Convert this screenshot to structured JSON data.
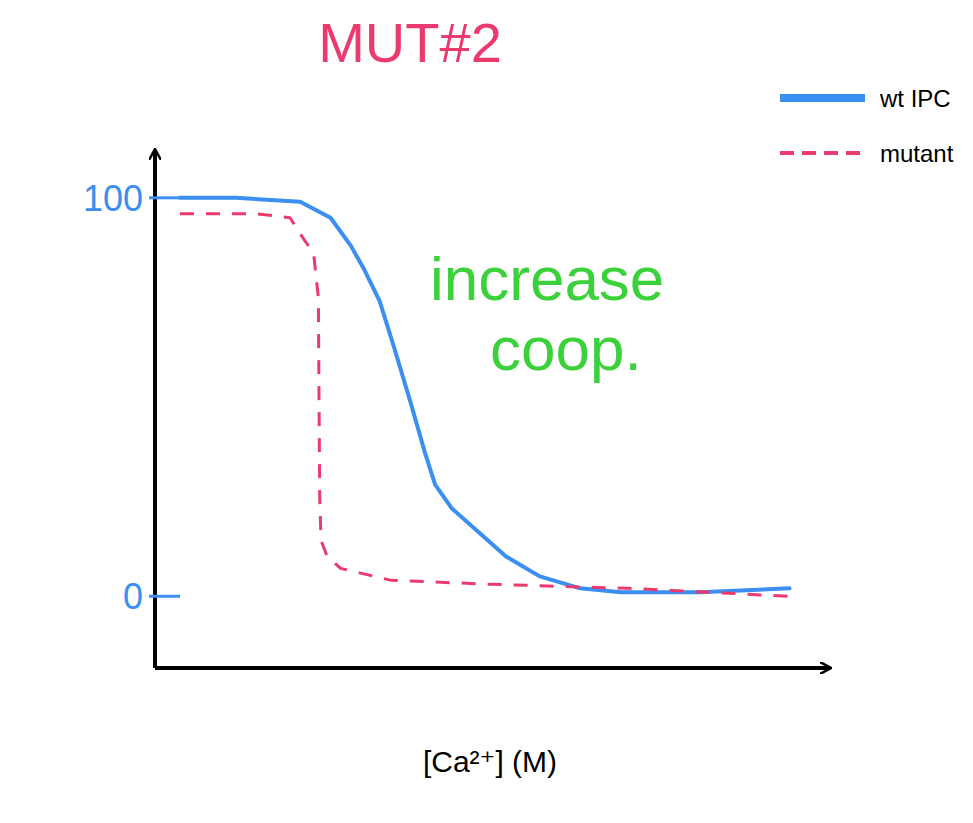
{
  "chart_data": {
    "type": "line",
    "title": "MUT#2",
    "x_label": "[Ca²⁺] (M)",
    "annotations": [
      "increase coop."
    ],
    "xlim": [
      0,
      10
    ],
    "ylim": [
      -18,
      112
    ],
    "yticks": [
      0,
      100
    ],
    "tick_labels": "y",
    "legend": "upper right",
    "series": [
      {
        "name": "wt IPC",
        "color": "#3b8ff0",
        "line_style": "solid",
        "x": [
          0.37,
          1.2,
          2.15,
          2.6,
          2.9,
          3.1,
          3.33,
          3.55,
          3.78,
          4.0,
          4.15,
          4.4,
          4.8,
          5.2,
          5.7,
          6.3,
          6.9,
          8.07,
          9.4
        ],
        "values": [
          100,
          100,
          99,
          95,
          88,
          82,
          74,
          62,
          49,
          36,
          28,
          22,
          16,
          10,
          5,
          2,
          1,
          1,
          2
        ]
      },
      {
        "name": "mutant",
        "color": "#ea3a6e",
        "line_style": "dashed",
        "x": [
          0.37,
          1.0,
          1.5,
          2.0,
          2.15,
          2.35,
          2.42,
          2.43,
          2.44,
          2.46,
          2.55,
          2.75,
          3.0,
          3.5,
          5.0,
          7.0,
          9.4
        ],
        "values": [
          96,
          96,
          96,
          95,
          91,
          86,
          75,
          50,
          25,
          14,
          10,
          7,
          6,
          4,
          3,
          2,
          0
        ]
      }
    ]
  }
}
